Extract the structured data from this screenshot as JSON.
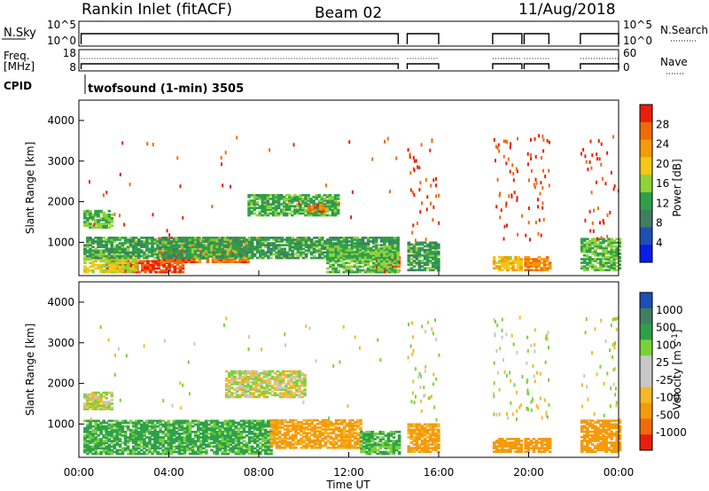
{
  "header": {
    "station": "Rankin Inlet (fitACF)",
    "beam": "Beam 02",
    "date": "11/Aug/2018"
  },
  "status_panels": {
    "nsky_label": "N.Sky",
    "nsky_ticks": [
      "10^5",
      "10^0"
    ],
    "nsearch_label": "N.Search",
    "nsearch_ticks": [
      "10^5",
      "10^0"
    ],
    "freq_label_top": "Freq.",
    "freq_label_bottom": "[MHz]",
    "freq_ticks": [
      "18",
      "8"
    ],
    "nave_label": "Nave",
    "nave_ticks": [
      "60",
      "0"
    ],
    "cpid_label": "CPID",
    "cpid_text": "twofsound (1-min) 3505"
  },
  "colors": {
    "power": [
      "#0a1ee6",
      "#1f4fb3",
      "#3f7f5f",
      "#2fa04a",
      "#8fd23a",
      "#f2c814",
      "#f59a0a",
      "#f06a0a",
      "#e81e0a"
    ],
    "velocity": [
      "#e81e0a",
      "#f06a0a",
      "#f59a0a",
      "#f5b829",
      "#c8c8c8",
      "#c8c8c8",
      "#7ad23a",
      "#2fa04a",
      "#3f7f5f",
      "#1f4fb3"
    ]
  },
  "chart_data": [
    {
      "type": "heatmap",
      "title": "",
      "xlabel": "",
      "ylabel": "Slant Range [km]",
      "colorbar_label": "Power [dB]",
      "colorbar_ticks": [
        "28",
        "24",
        "20",
        "16",
        "12",
        "8",
        "4"
      ],
      "yticks": [
        "4000",
        "3000",
        "2000",
        "1000"
      ],
      "xlim": [
        0,
        24
      ],
      "ylim": [
        180,
        4500
      ],
      "coverage_hours": [
        [
          0.1,
          14.2
        ],
        [
          14.6,
          16.0
        ],
        [
          18.4,
          19.7
        ],
        [
          19.8,
          20.9
        ],
        [
          22.3,
          24.0
        ]
      ],
      "regions": [
        {
          "t": [
            1.2,
            4.6
          ],
          "r": [
            250,
            550
          ],
          "v": 28
        },
        {
          "t": [
            3.5,
            7.5
          ],
          "r": [
            500,
            1100
          ],
          "v": 26
        },
        {
          "t": [
            0.2,
            2.5
          ],
          "r": [
            250,
            700
          ],
          "v": 18
        },
        {
          "t": [
            0.2,
            14.2
          ],
          "r": [
            600,
            1100
          ],
          "v": 12
        },
        {
          "t": [
            0.2,
            1.5
          ],
          "r": [
            1350,
            1800
          ],
          "v": 14
        },
        {
          "t": [
            7.5,
            11.5
          ],
          "r": [
            1650,
            2150
          ],
          "v": 13
        },
        {
          "t": [
            10.2,
            11.0
          ],
          "r": [
            1750,
            1900
          ],
          "v": 26
        },
        {
          "t": [
            13.2,
            14.2
          ],
          "r": [
            250,
            650
          ],
          "v": 28
        },
        {
          "t": [
            11.0,
            14.2
          ],
          "r": [
            250,
            900
          ],
          "v": 14
        },
        {
          "t": [
            14.6,
            16.0
          ],
          "r": [
            300,
            1000
          ],
          "v": 12
        },
        {
          "t": [
            18.4,
            19.7
          ],
          "r": [
            300,
            650
          ],
          "v": 20
        },
        {
          "t": [
            19.8,
            20.9
          ],
          "r": [
            300,
            650
          ],
          "v": 24
        },
        {
          "t": [
            22.3,
            24.0
          ],
          "r": [
            300,
            1100
          ],
          "v": 14
        }
      ]
    },
    {
      "type": "heatmap",
      "title": "",
      "xlabel": "Time UT",
      "ylabel": "Slant Range [km]",
      "colorbar_label": "Velocity [m s^-1]",
      "colorbar_ticks": [
        "1000",
        "500",
        "100",
        "25",
        "-25",
        "-100",
        "-500",
        "-1000"
      ],
      "yticks": [
        "4000",
        "3000",
        "2000",
        "1000"
      ],
      "xticks": [
        "00:00",
        "04:00",
        "08:00",
        "12:00",
        "16:00",
        "20:00",
        "00:00"
      ],
      "xlim": [
        0,
        24
      ],
      "ylim": [
        180,
        4500
      ],
      "coverage_hours": [
        [
          0.1,
          14.2
        ],
        [
          14.6,
          16.0
        ],
        [
          18.4,
          19.7
        ],
        [
          19.8,
          20.9
        ],
        [
          22.3,
          24.0
        ]
      ],
      "regions": [
        {
          "t": [
            0.2,
            1.5
          ],
          "r": [
            1350,
            1800
          ],
          "v": 0
        },
        {
          "t": [
            6.5,
            10.0
          ],
          "r": [
            1650,
            2300
          ],
          "v": 0
        },
        {
          "t": [
            0.2,
            8.5
          ],
          "r": [
            250,
            1100
          ],
          "v": 150
        },
        {
          "t": [
            8.5,
            12.5
          ],
          "r": [
            400,
            1100
          ],
          "v": -150
        },
        {
          "t": [
            12.5,
            14.2
          ],
          "r": [
            250,
            800
          ],
          "v": 120
        },
        {
          "t": [
            14.6,
            16.0
          ],
          "r": [
            300,
            1000
          ],
          "v": -150
        },
        {
          "t": [
            18.4,
            19.7
          ],
          "r": [
            300,
            650
          ],
          "v": -200
        },
        {
          "t": [
            19.8,
            20.9
          ],
          "r": [
            300,
            650
          ],
          "v": -300
        },
        {
          "t": [
            22.3,
            24.0
          ],
          "r": [
            300,
            1100
          ],
          "v": -200
        }
      ]
    }
  ]
}
